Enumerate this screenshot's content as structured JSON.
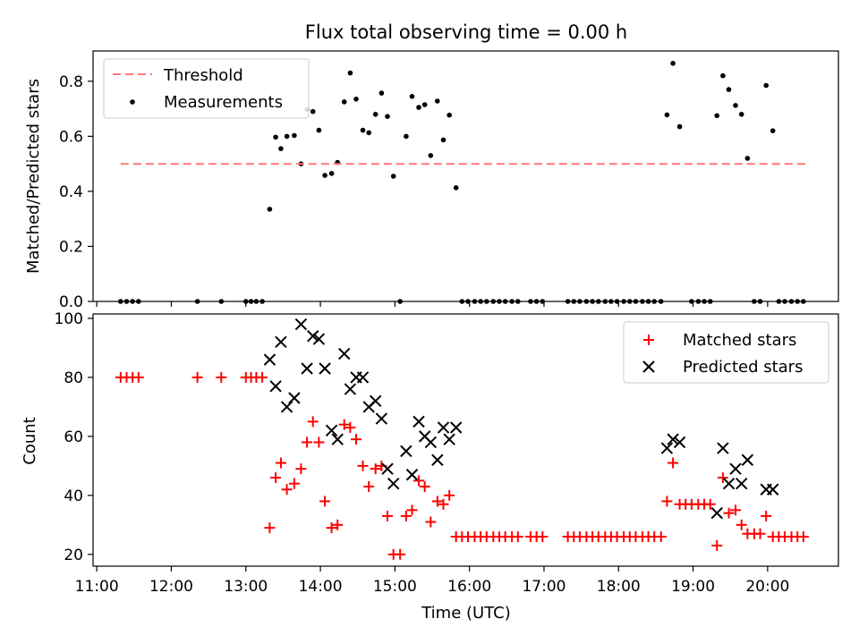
{
  "figure": {
    "title": "Flux total observing time = 0.00 h"
  },
  "chart_data": [
    {
      "type": "scatter",
      "title": "Flux total observing time = 0.00 h",
      "xlabel": "",
      "ylabel": "Matched/Predicted stars",
      "x_unit": "hours UTC",
      "xlim": [
        10.95,
        20.95
      ],
      "ylim": [
        0.0,
        0.91
      ],
      "yticks": [
        "0.0",
        "0.2",
        "0.4",
        "0.6",
        "0.8"
      ],
      "grid": false,
      "legend": {
        "placement": "top-left",
        "entries": [
          "Threshold",
          "Measurements"
        ]
      },
      "threshold": {
        "name": "Threshold",
        "value": 0.5,
        "x_range": [
          11.32,
          20.55
        ],
        "color": "#ff7777",
        "style": "dashed"
      },
      "measurements": {
        "name": "Measurements",
        "color": "#000000",
        "points": [
          [
            11.32,
            0
          ],
          [
            11.4,
            0
          ],
          [
            11.48,
            0
          ],
          [
            11.56,
            0
          ],
          [
            12.35,
            0
          ],
          [
            12.67,
            0
          ],
          [
            13.0,
            0
          ],
          [
            13.07,
            0
          ],
          [
            13.14,
            0
          ],
          [
            13.22,
            0
          ],
          [
            13.32,
            0.335
          ],
          [
            13.4,
            0.597
          ],
          [
            13.47,
            0.555
          ],
          [
            13.55,
            0.6
          ],
          [
            13.65,
            0.603
          ],
          [
            13.74,
            0.5
          ],
          [
            13.82,
            0.697
          ],
          [
            13.9,
            0.69
          ],
          [
            13.98,
            0.622
          ],
          [
            14.06,
            0.458
          ],
          [
            14.15,
            0.465
          ],
          [
            14.23,
            0.505
          ],
          [
            14.32,
            0.725
          ],
          [
            14.4,
            0.83
          ],
          [
            14.48,
            0.735
          ],
          [
            14.57,
            0.622
          ],
          [
            14.65,
            0.613
          ],
          [
            14.74,
            0.68
          ],
          [
            14.82,
            0.757
          ],
          [
            14.9,
            0.672
          ],
          [
            14.98,
            0.455
          ],
          [
            15.07,
            0.0
          ],
          [
            15.15,
            0.6
          ],
          [
            15.23,
            0.745
          ],
          [
            15.32,
            0.705
          ],
          [
            15.4,
            0.715
          ],
          [
            15.48,
            0.53
          ],
          [
            15.57,
            0.728
          ],
          [
            15.65,
            0.587
          ],
          [
            15.73,
            0.677
          ],
          [
            15.82,
            0.413
          ],
          [
            15.9,
            0
          ],
          [
            15.98,
            0
          ],
          [
            16.07,
            0
          ],
          [
            16.15,
            0
          ],
          [
            16.23,
            0
          ],
          [
            16.32,
            0
          ],
          [
            16.4,
            0
          ],
          [
            16.48,
            0
          ],
          [
            16.57,
            0
          ],
          [
            16.65,
            0
          ],
          [
            16.82,
            0
          ],
          [
            16.9,
            0
          ],
          [
            16.98,
            0
          ],
          [
            17.32,
            0
          ],
          [
            17.4,
            0
          ],
          [
            17.48,
            0
          ],
          [
            17.57,
            0
          ],
          [
            17.65,
            0
          ],
          [
            17.73,
            0
          ],
          [
            17.82,
            0
          ],
          [
            17.9,
            0
          ],
          [
            17.98,
            0
          ],
          [
            18.07,
            0
          ],
          [
            18.15,
            0
          ],
          [
            18.23,
            0
          ],
          [
            18.32,
            0
          ],
          [
            18.4,
            0
          ],
          [
            18.48,
            0
          ],
          [
            18.57,
            0
          ],
          [
            18.65,
            0.678
          ],
          [
            18.73,
            0.865
          ],
          [
            18.82,
            0.635
          ],
          [
            18.98,
            0
          ],
          [
            19.07,
            0
          ],
          [
            19.15,
            0
          ],
          [
            19.23,
            0
          ],
          [
            19.32,
            0.675
          ],
          [
            19.4,
            0.82
          ],
          [
            19.48,
            0.77
          ],
          [
            19.57,
            0.712
          ],
          [
            19.65,
            0.68
          ],
          [
            19.73,
            0.52
          ],
          [
            19.82,
            0
          ],
          [
            19.9,
            0
          ],
          [
            19.98,
            0.785
          ],
          [
            20.07,
            0.62
          ],
          [
            20.15,
            0
          ],
          [
            20.23,
            0
          ],
          [
            20.32,
            0
          ],
          [
            20.4,
            0
          ],
          [
            20.48,
            0
          ]
        ]
      }
    },
    {
      "type": "scatter",
      "title": "",
      "xlabel": "Time (UTC)",
      "ylabel": "Count",
      "x_unit": "hours UTC",
      "xlim": [
        10.95,
        20.95
      ],
      "ylim": [
        16.0,
        101.5
      ],
      "xticks": [
        "11:00",
        "12:00",
        "13:00",
        "14:00",
        "15:00",
        "16:00",
        "17:00",
        "18:00",
        "19:00",
        "20:00"
      ],
      "yticks": [
        "20",
        "40",
        "60",
        "80",
        "100"
      ],
      "grid": false,
      "legend": {
        "placement": "top-right",
        "entries": [
          "Matched stars",
          "Predicted stars"
        ]
      },
      "series": [
        {
          "name": "Matched stars",
          "marker": "plus",
          "color": "#ff0000",
          "points": [
            [
              11.32,
              80
            ],
            [
              11.4,
              80
            ],
            [
              11.48,
              80
            ],
            [
              11.56,
              80
            ],
            [
              12.35,
              80
            ],
            [
              12.67,
              80
            ],
            [
              13.0,
              80
            ],
            [
              13.07,
              80
            ],
            [
              13.14,
              80
            ],
            [
              13.22,
              80
            ],
            [
              13.32,
              29
            ],
            [
              13.4,
              46
            ],
            [
              13.47,
              51
            ],
            [
              13.55,
              42
            ],
            [
              13.65,
              44
            ],
            [
              13.74,
              49
            ],
            [
              13.82,
              58
            ],
            [
              13.9,
              65
            ],
            [
              13.98,
              58
            ],
            [
              14.06,
              38
            ],
            [
              14.15,
              29
            ],
            [
              14.23,
              30
            ],
            [
              14.32,
              64
            ],
            [
              14.4,
              63
            ],
            [
              14.48,
              59
            ],
            [
              14.57,
              50
            ],
            [
              14.65,
              43
            ],
            [
              14.74,
              49
            ],
            [
              14.82,
              50
            ],
            [
              14.9,
              33
            ],
            [
              14.98,
              20
            ],
            [
              15.07,
              20
            ],
            [
              15.15,
              33
            ],
            [
              15.23,
              35
            ],
            [
              15.32,
              45
            ],
            [
              15.4,
              43
            ],
            [
              15.48,
              31
            ],
            [
              15.57,
              38
            ],
            [
              15.65,
              37
            ],
            [
              15.73,
              40
            ],
            [
              15.82,
              26
            ],
            [
              15.9,
              26
            ],
            [
              15.98,
              26
            ],
            [
              16.07,
              26
            ],
            [
              16.15,
              26
            ],
            [
              16.23,
              26
            ],
            [
              16.32,
              26
            ],
            [
              16.4,
              26
            ],
            [
              16.48,
              26
            ],
            [
              16.57,
              26
            ],
            [
              16.65,
              26
            ],
            [
              16.82,
              26
            ],
            [
              16.9,
              26
            ],
            [
              16.98,
              26
            ],
            [
              17.32,
              26
            ],
            [
              17.4,
              26
            ],
            [
              17.48,
              26
            ],
            [
              17.57,
              26
            ],
            [
              17.65,
              26
            ],
            [
              17.73,
              26
            ],
            [
              17.82,
              26
            ],
            [
              17.9,
              26
            ],
            [
              17.98,
              26
            ],
            [
              18.07,
              26
            ],
            [
              18.15,
              26
            ],
            [
              18.23,
              26
            ],
            [
              18.32,
              26
            ],
            [
              18.4,
              26
            ],
            [
              18.48,
              26
            ],
            [
              18.57,
              26
            ],
            [
              18.65,
              38
            ],
            [
              18.73,
              51
            ],
            [
              18.82,
              37
            ],
            [
              18.9,
              37
            ],
            [
              18.98,
              37
            ],
            [
              19.07,
              37
            ],
            [
              19.15,
              37
            ],
            [
              19.23,
              37
            ],
            [
              19.32,
              23
            ],
            [
              19.4,
              46
            ],
            [
              19.48,
              34
            ],
            [
              19.57,
              35
            ],
            [
              19.65,
              30
            ],
            [
              19.73,
              27
            ],
            [
              19.82,
              27
            ],
            [
              19.9,
              27
            ],
            [
              19.98,
              33
            ],
            [
              20.07,
              26
            ],
            [
              20.15,
              26
            ],
            [
              20.23,
              26
            ],
            [
              20.32,
              26
            ],
            [
              20.4,
              26
            ],
            [
              20.48,
              26
            ]
          ]
        },
        {
          "name": "Predicted stars",
          "marker": "x",
          "color": "#000000",
          "points": [
            [
              13.32,
              86
            ],
            [
              13.4,
              77
            ],
            [
              13.47,
              92
            ],
            [
              13.55,
              70
            ],
            [
              13.65,
              73
            ],
            [
              13.74,
              98
            ],
            [
              13.82,
              83
            ],
            [
              13.9,
              94
            ],
            [
              13.98,
              93
            ],
            [
              14.06,
              83
            ],
            [
              14.15,
              62
            ],
            [
              14.23,
              59
            ],
            [
              14.32,
              88
            ],
            [
              14.4,
              76
            ],
            [
              14.48,
              80
            ],
            [
              14.57,
              80
            ],
            [
              14.65,
              70
            ],
            [
              14.74,
              72
            ],
            [
              14.82,
              66
            ],
            [
              14.9,
              49
            ],
            [
              14.98,
              44
            ],
            [
              15.15,
              55
            ],
            [
              15.23,
              47
            ],
            [
              15.32,
              65
            ],
            [
              15.4,
              60
            ],
            [
              15.48,
              58
            ],
            [
              15.57,
              52
            ],
            [
              15.65,
              63
            ],
            [
              15.73,
              59
            ],
            [
              15.82,
              63
            ],
            [
              18.65,
              56
            ],
            [
              18.73,
              59
            ],
            [
              18.82,
              58
            ],
            [
              19.32,
              34
            ],
            [
              19.4,
              56
            ],
            [
              19.48,
              44
            ],
            [
              19.57,
              49
            ],
            [
              19.65,
              44
            ],
            [
              19.73,
              52
            ],
            [
              19.98,
              42
            ],
            [
              20.07,
              42
            ]
          ]
        }
      ]
    }
  ]
}
